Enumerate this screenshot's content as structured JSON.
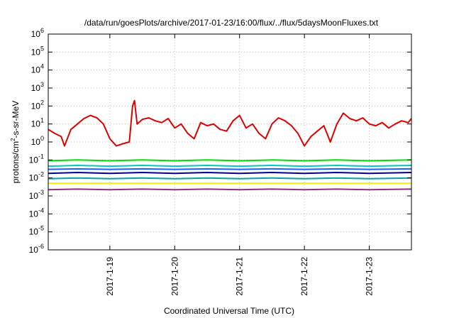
{
  "chart_data": {
    "type": "line",
    "title": "/data/run/goesPlots/archive/2017-01-23/16:00/flux/../flux/5daysMoonFluxes.txt",
    "xlabel": "Coordinated Universal Time (UTC)",
    "ylabel": "protons/cm²-s-sr-MeV",
    "y_scale": "log",
    "ylim": [
      1e-06,
      1000000.0
    ],
    "xlim": [
      -0.95,
      4.65
    ],
    "x_tick_labels": [
      "2017-1-19",
      "2017-1-20",
      "2017-1-21",
      "2017-1-22",
      "2017-1-23"
    ],
    "x_tick_positions": [
      0,
      1,
      2,
      3,
      4
    ],
    "y_ticks": [
      {
        "value": 1e-06,
        "base": "10",
        "exp": "-6"
      },
      {
        "value": 1e-05,
        "base": "10",
        "exp": "-5"
      },
      {
        "value": 0.0001,
        "base": "10",
        "exp": "-4"
      },
      {
        "value": 0.001,
        "base": "10",
        "exp": "-3"
      },
      {
        "value": 0.01,
        "base": "10",
        "exp": "-2"
      },
      {
        "value": 0.1,
        "base": "10",
        "exp": "-1"
      },
      {
        "value": 1.0,
        "base": "10",
        "exp": "0"
      },
      {
        "value": 10.0,
        "base": "10",
        "exp": "1"
      },
      {
        "value": 100.0,
        "base": "10",
        "exp": "2"
      },
      {
        "value": 1000.0,
        "base": "10",
        "exp": "3"
      },
      {
        "value": 10000.0,
        "base": "10",
        "exp": "4"
      },
      {
        "value": 100000.0,
        "base": "10",
        "exp": "5"
      },
      {
        "value": 1000000.0,
        "base": "10",
        "exp": "6"
      }
    ],
    "grid": true,
    "series": [
      {
        "color": "#e00000",
        "x": [
          -0.95,
          -0.85,
          -0.75,
          -0.7,
          -0.6,
          -0.5,
          -0.4,
          -0.3,
          -0.2,
          -0.1,
          0.0,
          0.1,
          0.2,
          0.3,
          0.35,
          0.38,
          0.42,
          0.5,
          0.6,
          0.7,
          0.8,
          0.9,
          1.0,
          1.1,
          1.2,
          1.3,
          1.4,
          1.5,
          1.6,
          1.7,
          1.8,
          1.9,
          2.0,
          2.1,
          2.2,
          2.3,
          2.4,
          2.5,
          2.6,
          2.7,
          2.8,
          2.9,
          3.0,
          3.1,
          3.2,
          3.3,
          3.4,
          3.5,
          3.6,
          3.7,
          3.8,
          3.9,
          4.0,
          4.1,
          4.2,
          4.3,
          4.4,
          4.5,
          4.6,
          4.65
        ],
        "y": [
          5,
          3,
          2,
          0.6,
          5,
          10,
          20,
          30,
          22,
          10,
          1.5,
          0.6,
          0.8,
          1,
          100,
          200,
          10,
          18,
          22,
          15,
          12,
          20,
          6,
          10,
          3,
          1.5,
          12,
          8,
          10,
          5,
          4,
          15,
          30,
          6,
          10,
          3,
          1.5,
          10,
          22,
          15,
          8,
          3,
          0.6,
          2,
          4,
          8,
          1,
          10,
          40,
          20,
          15,
          22,
          10,
          8,
          12,
          6,
          10,
          15,
          12,
          20
        ]
      },
      {
        "color": "#00e000",
        "x": [
          -0.95,
          -0.5,
          0,
          0.5,
          1,
          1.5,
          2,
          2.5,
          3,
          3.5,
          4,
          4.65
        ],
        "y": [
          0.09,
          0.1,
          0.09,
          0.1,
          0.09,
          0.1,
          0.09,
          0.1,
          0.09,
          0.1,
          0.09,
          0.1
        ]
      },
      {
        "color": "#00c8c8",
        "x": [
          -0.95,
          -0.5,
          0,
          0.5,
          1,
          1.5,
          2,
          2.5,
          3,
          3.5,
          4,
          4.65
        ],
        "y": [
          0.045,
          0.05,
          0.045,
          0.05,
          0.045,
          0.05,
          0.045,
          0.05,
          0.045,
          0.05,
          0.045,
          0.05
        ]
      },
      {
        "color": "#2060ff",
        "x": [
          -0.95,
          -0.5,
          0,
          0.5,
          1,
          1.5,
          2,
          2.5,
          3,
          3.5,
          4,
          4.65
        ],
        "y": [
          0.03,
          0.032,
          0.03,
          0.032,
          0.03,
          0.032,
          0.03,
          0.032,
          0.03,
          0.032,
          0.03,
          0.032
        ]
      },
      {
        "color": "#0000a0",
        "x": [
          -0.95,
          -0.5,
          0,
          0.5,
          1,
          1.5,
          2,
          2.5,
          3,
          3.5,
          4,
          4.65
        ],
        "y": [
          0.018,
          0.02,
          0.018,
          0.02,
          0.018,
          0.02,
          0.018,
          0.02,
          0.018,
          0.02,
          0.018,
          0.02
        ]
      },
      {
        "color": "#00a8a0",
        "x": [
          -0.95,
          -0.5,
          0,
          0.5,
          1,
          1.5,
          2,
          2.5,
          3,
          3.5,
          4,
          4.65
        ],
        "y": [
          0.009,
          0.01,
          0.009,
          0.01,
          0.009,
          0.01,
          0.009,
          0.01,
          0.009,
          0.01,
          0.009,
          0.01
        ]
      },
      {
        "color": "#f0f000",
        "x": [
          -0.95,
          -0.5,
          0,
          0.5,
          1,
          1.5,
          2,
          2.5,
          3,
          3.5,
          4,
          4.65
        ],
        "y": [
          0.005,
          0.005,
          0.005,
          0.005,
          0.005,
          0.005,
          0.005,
          0.005,
          0.005,
          0.005,
          0.005,
          0.005
        ]
      },
      {
        "color": "#903070",
        "x": [
          -0.95,
          -0.5,
          0,
          0.5,
          1,
          1.5,
          2,
          2.5,
          3,
          3.5,
          4,
          4.65
        ],
        "y": [
          0.0022,
          0.0024,
          0.0022,
          0.0024,
          0.0022,
          0.0024,
          0.0022,
          0.0024,
          0.0022,
          0.0024,
          0.0022,
          0.0024
        ]
      }
    ]
  }
}
